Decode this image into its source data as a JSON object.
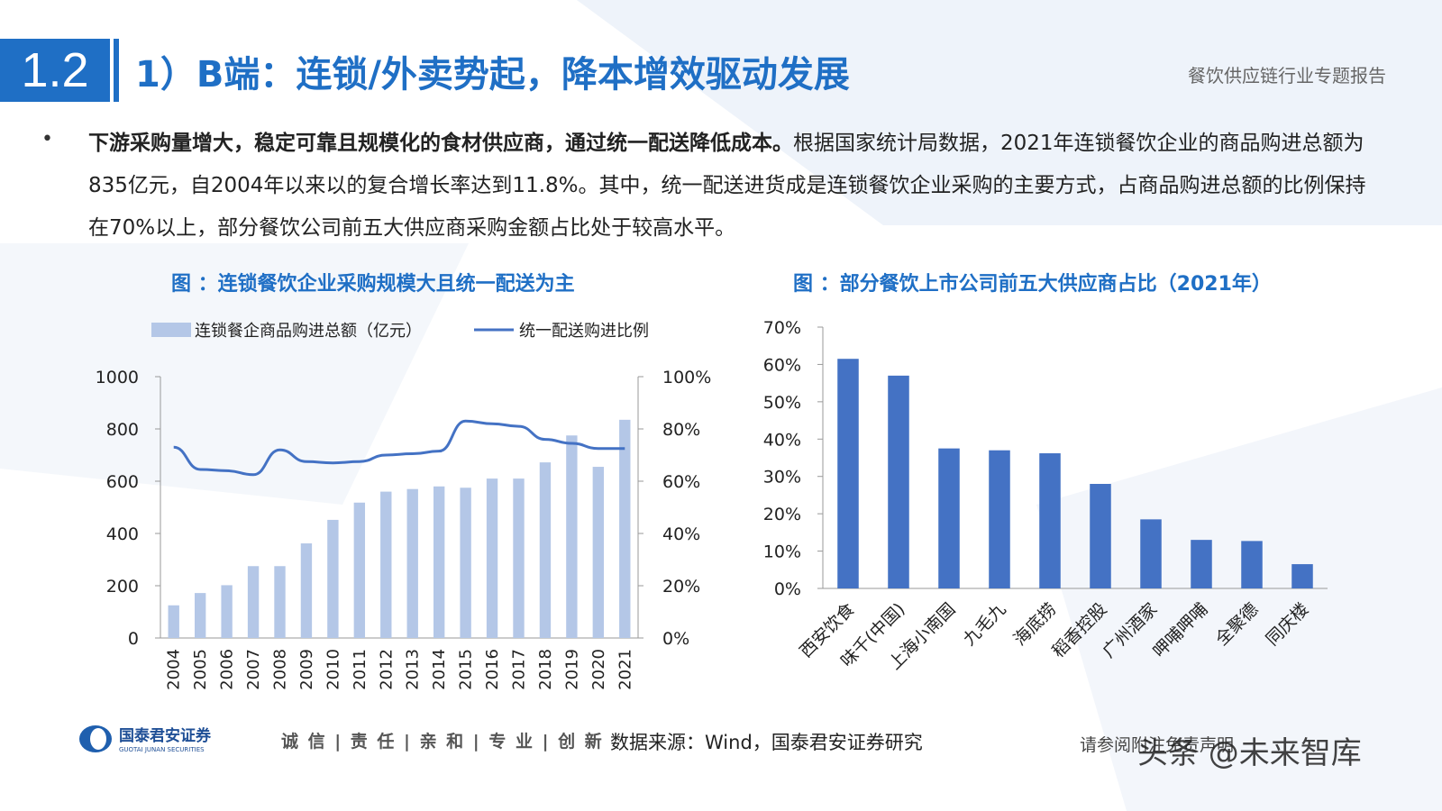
{
  "header": {
    "section_number": "1.2",
    "title": "1）B端：连锁/外卖势起，降本增效驱动发展",
    "report_name": "餐饮供应链行业专题报告"
  },
  "bullet": {
    "bold_text": "下游采购量增大，稳定可靠且规模化的食材供应商，通过统一配送降低成本。",
    "normal_text": "根据国家统计局数据，2021年连锁餐饮企业的商品购进总额为835亿元，自2004年以来以的复合增长率达到11.8%。其中，统一配送进货成是连锁餐饮企业采购的主要方式，占商品购进总额的比例保持在70%以上，部分餐饮公司前五大供应商采购金额占比处于较高水平。"
  },
  "chart_data": [
    {
      "type": "bar",
      "title": "图 ：连锁餐饮企业采购规模大且统一配送为主",
      "categories": [
        "2004",
        "2005",
        "2006",
        "2007",
        "2008",
        "2009",
        "2010",
        "2011",
        "2012",
        "2013",
        "2014",
        "2015",
        "2016",
        "2017",
        "2018",
        "2019",
        "2020",
        "2021"
      ],
      "series": [
        {
          "name": "连锁餐企商品购进总额（亿元）",
          "type": "bar",
          "axis": "left",
          "color": "#b4c7e7",
          "values": [
            125,
            172,
            202,
            275,
            275,
            362,
            452,
            518,
            560,
            570,
            580,
            575,
            610,
            610,
            672,
            775,
            655,
            835
          ]
        },
        {
          "name": "统一配送购进比例",
          "type": "line",
          "axis": "right",
          "color": "#4472c4",
          "values": [
            0.73,
            0.645,
            0.64,
            0.625,
            0.72,
            0.675,
            0.67,
            0.675,
            0.7,
            0.705,
            0.715,
            0.83,
            0.82,
            0.81,
            0.76,
            0.745,
            0.725,
            0.725
          ]
        }
      ],
      "y_left": {
        "ylim": [
          0,
          1000
        ],
        "ticks": [
          "0",
          "200",
          "400",
          "600",
          "800",
          "1000"
        ]
      },
      "y_right": {
        "ylim": [
          0,
          1
        ],
        "ticks": [
          "0%",
          "20%",
          "40%",
          "60%",
          "80%",
          "100%"
        ]
      },
      "legend_position": "top"
    },
    {
      "type": "bar",
      "title": "图 ：部分餐饮上市公司前五大供应商占比（2021年）",
      "categories": [
        "西安饮食",
        "味千(中国)",
        "上海小南国",
        "九毛九",
        "海底捞",
        "稻香控股",
        "广州酒家",
        "呷哺呷哺",
        "全聚德",
        "同庆楼"
      ],
      "values": [
        0.615,
        0.57,
        0.375,
        0.37,
        0.362,
        0.28,
        0.185,
        0.13,
        0.127,
        0.065
      ],
      "color": "#4472c4",
      "ylim": [
        0,
        0.7
      ],
      "y_ticks": [
        "0%",
        "10%",
        "20%",
        "30%",
        "40%",
        "50%",
        "60%",
        "70%"
      ]
    }
  ],
  "footer": {
    "company": "国泰君安证券",
    "company_en": "GUOTAI JUNAN SECURITIES",
    "slogan": "诚 信 | 责 任 | 亲 和 | 专 业 | 创 新",
    "source": "数据来源：Wind，国泰君安证券研究",
    "disclaimer": "请参阅附注免责声明",
    "watermark": "头条 @未来智库"
  },
  "colors": {
    "accent": "#1f6fc5",
    "bar_light": "#b4c7e7",
    "bar_dark": "#4472c4"
  }
}
